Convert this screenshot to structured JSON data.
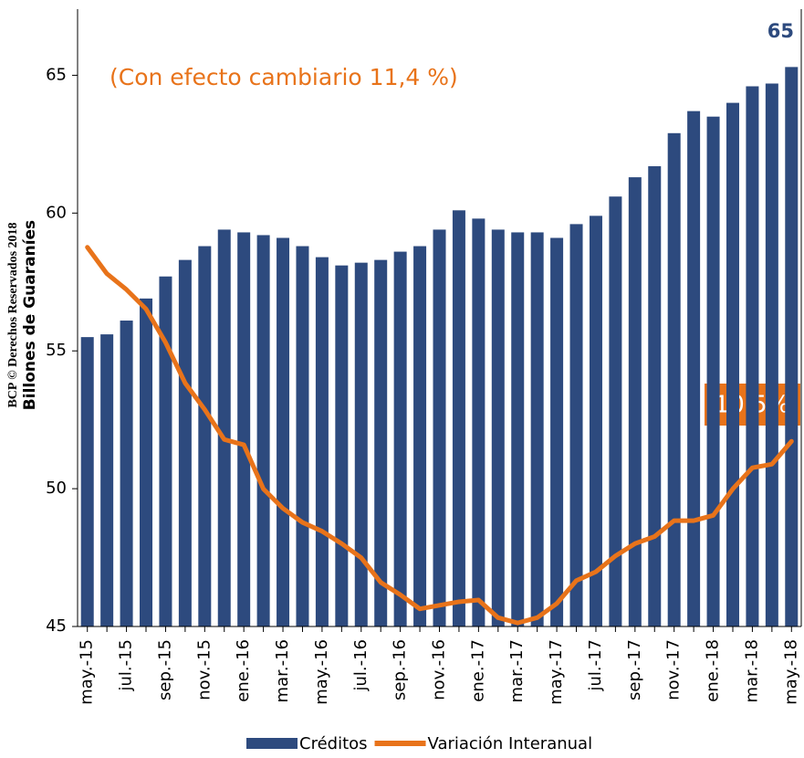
{
  "chart_data": {
    "type": "bar",
    "y_label": "Billones de Guaraníes",
    "watermark": "BCP © Derechos Reservados 2018",
    "annotations": [
      "(Con efecto cambiario  11,4 %)",
      "65",
      "10,5%"
    ],
    "categories": [
      "may.-15",
      null,
      "jul.-15",
      null,
      "sep.-15",
      null,
      "nov.-15",
      null,
      "ene.-16",
      null,
      "mar.-16",
      null,
      "may.-16",
      null,
      "jul.-16",
      null,
      "sep.-16",
      null,
      "nov.-16",
      null,
      "ene.-17",
      null,
      "mar.-17",
      null,
      "may.-17",
      null,
      "jul.-17",
      null,
      "sep.-17",
      null,
      "nov.-17",
      null,
      "ene.-18",
      null,
      "mar.-18",
      null,
      "may.-18"
    ],
    "series": [
      {
        "name": "Créditos",
        "color": "#2d4a7e",
        "type": "bar",
        "values": [
          55.5,
          55.6,
          56.1,
          56.9,
          57.7,
          58.3,
          58.8,
          59.4,
          59.3,
          59.2,
          59.1,
          58.8,
          58.4,
          58.1,
          58.2,
          58.3,
          58.6,
          58.8,
          59.4,
          60.1,
          59.8,
          59.4,
          59.3,
          59.3,
          59.1,
          59.6,
          59.9,
          60.6,
          61.3,
          61.7,
          62.9,
          63.7,
          63.5,
          64.0,
          64.6,
          64.7,
          65.3
        ]
      },
      {
        "name": "Variación  Interanual",
        "color": "#e8731a",
        "type": "line",
        "axis": "y2",
        "values": [
          21.5,
          20.0,
          19.1,
          18.0,
          16.1,
          13.8,
          12.3,
          10.6,
          10.3,
          7.8,
          6.7,
          5.9,
          5.4,
          4.7,
          3.9,
          2.5,
          1.8,
          1.0,
          1.2,
          1.4,
          1.5,
          0.5,
          0.2,
          0.5,
          1.3,
          2.6,
          3.1,
          4.0,
          4.7,
          5.1,
          6.0,
          6.0,
          6.3,
          7.8,
          9.0,
          9.2,
          10.5
        ]
      }
    ],
    "ylim": [
      45,
      67.4
    ],
    "yticks": [
      45,
      50,
      55,
      60,
      65
    ],
    "y2lim": [
      0,
      35
    ]
  }
}
